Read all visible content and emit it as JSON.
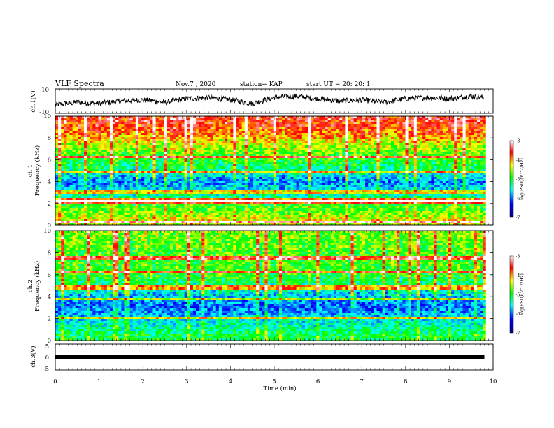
{
  "header": {
    "title": "VLF Spectra",
    "date": "Nov.7 , 2020",
    "station": "station= KAP",
    "start_ut": "start UT = 20: 20: 1"
  },
  "colors": {
    "background": "#ffffff",
    "axis": "#000000",
    "colormap": [
      "#000090",
      "#0000ff",
      "#00ffff",
      "#00ff00",
      "#ffff00",
      "#ff0000",
      "#ffffff"
    ]
  },
  "chart_data": [
    {
      "id": "ch1-waveform",
      "type": "line",
      "ylabel": "ch.1(V)",
      "ylim": [
        -10,
        10
      ],
      "yticks": [
        "10",
        "-10"
      ],
      "xlim": [
        0,
        10
      ],
      "series": [
        {
          "x": [
            0,
            0.5,
            1,
            1.5,
            2,
            2.5,
            3,
            3.5,
            4,
            4.5,
            5,
            5.5,
            6,
            6.5,
            7,
            7.5,
            8,
            8.5,
            9,
            9.5,
            9.8
          ],
          "values": [
            -3,
            -1,
            -2,
            0,
            1,
            -1,
            2,
            3,
            1,
            -2,
            3,
            4,
            2,
            0,
            1,
            -1,
            2,
            3,
            2,
            4,
            3
          ]
        }
      ]
    },
    {
      "id": "ch1-spectrogram",
      "type": "heatmap",
      "ylabel": "ch.1",
      "ylabel2": "Frequency (kHz)",
      "ylim": [
        0,
        10
      ],
      "yticks": [
        "0",
        "2",
        "4",
        "6",
        "8",
        "10"
      ],
      "xlim": [
        0,
        9.83
      ],
      "colorbar": {
        "label": "log(PSD)(V^2/Hz)",
        "range": [
          -7,
          -3
        ],
        "ticks": [
          "-3",
          "-4",
          "-5",
          "-6",
          "-7"
        ]
      },
      "profile": {
        "freq_khz": [
          0,
          0.5,
          1,
          2,
          3,
          4,
          5,
          6,
          7,
          8,
          9,
          10
        ],
        "log_psd": [
          -4.5,
          -4.3,
          -4.6,
          -5.0,
          -5.5,
          -5.9,
          -5.3,
          -4.9,
          -4.6,
          -4.1,
          -3.7,
          -3.5
        ]
      },
      "bright_lines_khz": [
        0.3,
        2.1,
        2.3,
        3.1,
        4.9,
        6.3
      ]
    },
    {
      "id": "ch2-spectrogram",
      "type": "heatmap",
      "ylabel": "ch.2",
      "ylabel2": "Frequency (kHz)",
      "ylim": [
        0,
        10
      ],
      "yticks": [
        "0",
        "2",
        "4",
        "6",
        "8",
        "10"
      ],
      "xlim": [
        0,
        9.83
      ],
      "colorbar": {
        "label": "log(PSD)(V^2/Hz)",
        "range": [
          -7,
          -3
        ],
        "ticks": [
          "-3",
          "-4",
          "-5",
          "-6",
          "-7"
        ]
      },
      "profile": {
        "freq_khz": [
          0,
          0.5,
          1,
          2,
          3,
          4,
          5,
          6,
          7,
          8,
          9,
          10
        ],
        "log_psd": [
          -5.0,
          -5.1,
          -5.3,
          -5.6,
          -6.0,
          -5.7,
          -5.2,
          -4.9,
          -4.8,
          -4.8,
          -4.7,
          -4.6
        ]
      },
      "bright_lines_khz": [
        2.0,
        3.8,
        4.8,
        6.3,
        7.5
      ]
    },
    {
      "id": "ch3-waveform",
      "type": "line",
      "ylabel": "ch.3(V)",
      "ylim": [
        -5,
        5
      ],
      "yticks": [
        "5",
        "0",
        "-5"
      ],
      "xlim": [
        0,
        9.8
      ],
      "series": [
        {
          "x": [
            0,
            9.8
          ],
          "values": [
            -1,
            -1
          ]
        }
      ]
    }
  ],
  "x_axis": {
    "label": "Time (min)",
    "ticks": [
      "0",
      "1",
      "2",
      "3",
      "4",
      "5",
      "6",
      "7",
      "8",
      "9",
      "10"
    ],
    "range": [
      0,
      10
    ]
  }
}
